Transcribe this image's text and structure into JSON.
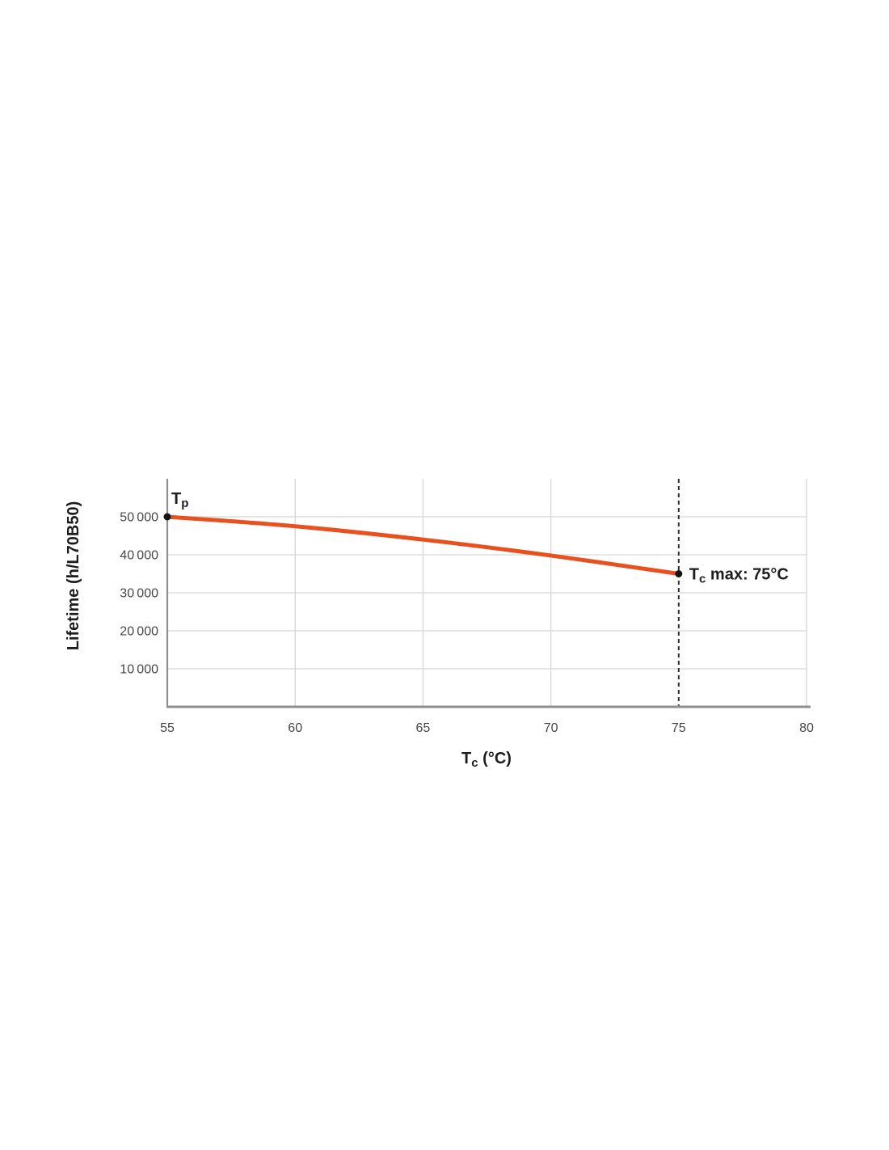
{
  "page": {
    "background": "#ffffff"
  },
  "chart_data": {
    "type": "line",
    "title": "",
    "xlabel": {
      "base": "T",
      "sub": "c",
      "rest": " (°C)"
    },
    "ylabel": "Lifetime (h/L70B50)",
    "xlim": [
      55,
      80
    ],
    "ylim": [
      0,
      60000
    ],
    "x_ticks": [
      {
        "value": 55,
        "label": "55"
      },
      {
        "value": 60,
        "label": "60"
      },
      {
        "value": 65,
        "label": "65"
      },
      {
        "value": 70,
        "label": "70"
      },
      {
        "value": 75,
        "label": "75"
      },
      {
        "value": 80,
        "label": "80"
      }
    ],
    "y_ticks": [
      {
        "value": 10000,
        "label": "10 000"
      },
      {
        "value": 20000,
        "label": "20 000"
      },
      {
        "value": 30000,
        "label": "30 000"
      },
      {
        "value": 40000,
        "label": "40 000"
      },
      {
        "value": 50000,
        "label": "50 000"
      }
    ],
    "grid": true,
    "legend": "none",
    "series": [
      {
        "name": "lifetime-curve",
        "color": "#e8501e",
        "x": [
          55,
          60,
          65,
          70,
          75
        ],
        "values": [
          50000,
          47500,
          44000,
          39800,
          35000
        ]
      }
    ],
    "reference_line": {
      "x": 75,
      "style": "dashed",
      "color": "#2f2f2f"
    },
    "annotations": [
      {
        "id": "tp",
        "base": "T",
        "sub": "p",
        "rest": "",
        "x": 55,
        "y": 50000
      },
      {
        "id": "tc-max",
        "base": "T",
        "sub": "c",
        "rest": " max: 75°C",
        "x": 75,
        "y": 35000
      }
    ],
    "colors": {
      "grid": "#d6d6d6",
      "axis": "#8f8f8f",
      "tick_text": "#474747",
      "label_text": "#1d1d1d",
      "curve": "#e8501e",
      "dot": "#141414",
      "background": "#ffffff"
    }
  }
}
